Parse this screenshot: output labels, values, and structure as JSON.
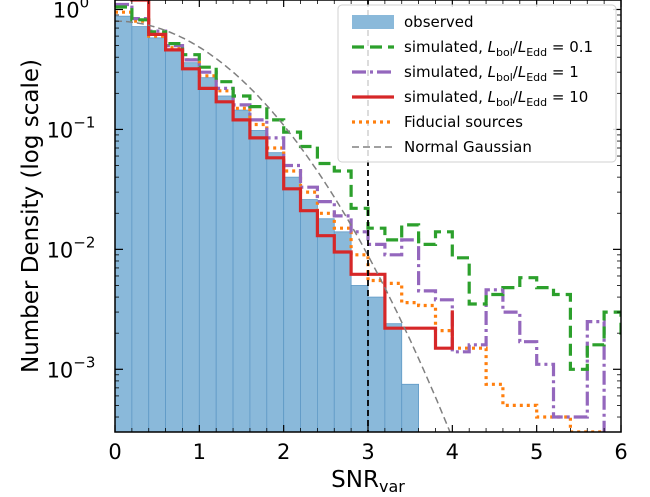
{
  "chart_data": {
    "type": "histogram",
    "xlabel": {
      "base": "SNR",
      "sub": "var"
    },
    "ylabel": "Number Density (log scale)",
    "xlim": [
      0,
      6
    ],
    "ylim": [
      0.0003,
      1.2
    ],
    "yscale": "log",
    "xticks": [
      {
        "value": 0,
        "label": "0"
      },
      {
        "value": 1,
        "label": "1"
      },
      {
        "value": 2,
        "label": "2"
      },
      {
        "value": 3,
        "label": "3"
      },
      {
        "value": 4,
        "label": "4"
      },
      {
        "value": 5,
        "label": "5"
      },
      {
        "value": 6,
        "label": "6"
      }
    ],
    "yticks": [
      {
        "value": 1,
        "base": "10",
        "exp": "0"
      },
      {
        "value": 0.1,
        "base": "10",
        "exp": "−1"
      },
      {
        "value": 0.01,
        "base": "10",
        "exp": "−2"
      },
      {
        "value": 0.001,
        "base": "10",
        "exp": "−3"
      }
    ],
    "legend_position": "top-right",
    "vline": {
      "x": 3.0,
      "color": "#000000"
    },
    "observed": {
      "color": "#8ab9da",
      "edgecolor": "#5f99c6",
      "edges": [
        0,
        0.2,
        0.4,
        0.6,
        0.8,
        1.0,
        1.2,
        1.4,
        1.6,
        1.8,
        2.0,
        2.2,
        2.4,
        2.6,
        2.8,
        3.0,
        3.2,
        3.4,
        3.6
      ],
      "values": [
        0.88,
        0.72,
        0.58,
        0.47,
        0.36,
        0.27,
        0.19,
        0.145,
        0.098,
        0.064,
        0.04,
        0.026,
        0.018,
        0.014,
        0.005,
        0.004,
        0.0024,
        0.00075
      ]
    },
    "normal_gaussian": {
      "color": "#808080",
      "amplitude": 0.8
    }
  },
  "series": [
    {
      "key": "observed",
      "name_html": "observed",
      "color": "#8ab9da"
    },
    {
      "key": "sim01",
      "label_prefix": "simulated, ",
      "ratio_base": "L",
      "ratio_sub1": "bol",
      "ratio_sub2": "Edd",
      "ratio_value": "= 0.1",
      "color": "#2ca02c",
      "dash": "12 6",
      "edges": [
        0,
        0.2,
        0.4,
        0.6,
        0.8,
        1.0,
        1.2,
        1.4,
        1.6,
        1.8,
        2.0,
        2.2,
        2.4,
        2.6,
        2.8,
        3.0,
        3.2,
        3.4,
        3.6,
        3.8,
        4.0,
        4.2,
        4.4,
        4.6,
        4.8,
        5.0,
        5.2,
        5.4,
        5.6,
        5.8,
        6.0
      ],
      "values": [
        1.05,
        0.82,
        0.65,
        0.52,
        0.42,
        0.33,
        0.25,
        0.19,
        0.155,
        0.12,
        0.095,
        0.072,
        0.052,
        0.045,
        0.022,
        0.015,
        0.012,
        0.016,
        0.011,
        0.014,
        0.0085,
        0.0035,
        0.0042,
        0.0048,
        0.0058,
        0.0048,
        0.0042,
        0.001,
        0.0016,
        0.003,
        0.0018
      ]
    },
    {
      "key": "sim1",
      "label_prefix": "simulated, ",
      "ratio_base": "L",
      "ratio_sub1": "bol",
      "ratio_sub2": "Edd",
      "ratio_value": "= 1",
      "color": "#9467bd",
      "dash": "14 4 3 4",
      "edges": [
        0,
        0.2,
        0.4,
        0.6,
        0.8,
        1.0,
        1.2,
        1.4,
        1.6,
        1.8,
        2.0,
        2.2,
        2.4,
        2.6,
        2.8,
        3.0,
        3.2,
        3.4,
        3.6,
        3.8,
        4.0,
        4.2,
        4.4,
        4.6,
        4.8,
        5.0,
        5.2,
        5.4,
        5.6,
        5.8
      ],
      "values": [
        1.1,
        0.84,
        0.66,
        0.5,
        0.38,
        0.3,
        0.22,
        0.16,
        0.12,
        0.085,
        0.05,
        0.033,
        0.025,
        0.019,
        0.014,
        0.011,
        0.009,
        0.012,
        0.0045,
        0.0038,
        0.0014,
        0.0016,
        0.0046,
        0.003,
        0.0017,
        0.0011,
        0.0004,
        0.0004,
        0.0025,
        0.0003
      ]
    },
    {
      "key": "sim10",
      "label_prefix": "simulated, ",
      "ratio_base": "L",
      "ratio_sub1": "bol",
      "ratio_sub2": "Edd",
      "ratio_value": "= 10",
      "color": "#d62728",
      "dash": "",
      "edges": [
        0,
        0.2,
        0.4,
        0.6,
        0.8,
        1.0,
        1.2,
        1.4,
        1.6,
        1.8,
        2.0,
        2.2,
        2.4,
        2.6,
        2.8,
        3.0,
        3.2,
        3.4,
        3.6,
        3.8,
        4.0
      ],
      "values": [
        1.4,
        1.2,
        0.62,
        0.46,
        0.32,
        0.22,
        0.17,
        0.12,
        0.085,
        0.058,
        0.032,
        0.021,
        0.013,
        0.0095,
        0.0062,
        0.0062,
        0.0022,
        0.0022,
        0.0022,
        0.0015,
        0.0031
      ]
    },
    {
      "key": "fiducial",
      "label": "Fiducial sources",
      "color": "#ff7f0e",
      "dash": "3 4",
      "edges": [
        0,
        0.2,
        0.4,
        0.6,
        0.8,
        1.0,
        1.2,
        1.4,
        1.6,
        1.8,
        2.0,
        2.2,
        2.4,
        2.6,
        2.8,
        3.0,
        3.2,
        3.4,
        3.6,
        3.8,
        4.0,
        4.2,
        4.4,
        4.6,
        4.8,
        5.0,
        5.2,
        5.4,
        5.6,
        5.8
      ],
      "values": [
        0.95,
        0.8,
        0.6,
        0.48,
        0.38,
        0.28,
        0.21,
        0.15,
        0.11,
        0.07,
        0.045,
        0.03,
        0.02,
        0.015,
        0.009,
        0.0055,
        0.0052,
        0.0036,
        0.0034,
        0.0021,
        0.0015,
        0.0015,
        0.00075,
        0.0005,
        0.0005,
        0.0004,
        0.0004,
        0.0003,
        0.0003,
        0.0003
      ]
    },
    {
      "key": "gauss",
      "label": "Normal Gaussian",
      "color": "#808080",
      "dash": "7 4"
    }
  ]
}
